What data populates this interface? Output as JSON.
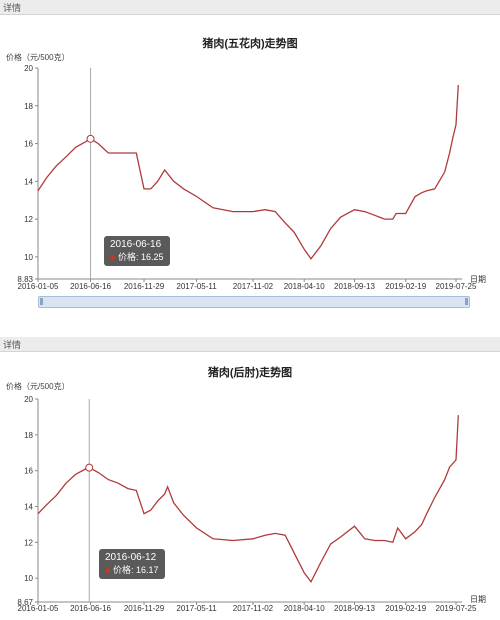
{
  "panels": [
    {
      "tab_label": "详情",
      "title": "猪肉(五花肉)走势图",
      "y_unit": "价格（元/500克）",
      "x_axis_name": "日期",
      "tooltip": {
        "date": "2016-06-16",
        "label": "价格: 16.25"
      }
    },
    {
      "tab_label": "详情",
      "title": "猪肉(后肘)走势图",
      "y_unit": "价格（元/500克）",
      "x_axis_name": "日期",
      "tooltip": {
        "date": "2016-06-12",
        "label": "价格: 16.17"
      }
    }
  ],
  "colors": {
    "line": "#b03a3a",
    "grid": "#e6e6e6",
    "axis": "#888888"
  },
  "chart_data": [
    {
      "type": "line",
      "title": "猪肉(五花肉)走势图",
      "ylabel": "价格（元/500克）",
      "xlabel": "日期",
      "ylim": [
        8.83,
        20
      ],
      "y_ticks": [
        "20",
        "18",
        "16",
        "14",
        "12",
        "10",
        "8.83"
      ],
      "x_ticks": [
        "2016-01-05",
        "2016-06-16",
        "2016-11-29",
        "2017-05-11",
        "2017-11-02",
        "2018-04-10",
        "2018-09-13",
        "2019-02-19",
        "2019-07-25"
      ],
      "grid": "none",
      "series": [
        {
          "x": [
            "2016-01-05",
            "2016-02-01",
            "2016-03-01",
            "2016-04-01",
            "2016-05-01",
            "2016-06-01",
            "2016-06-16",
            "2016-07-10",
            "2016-08-10",
            "2016-09-10",
            "2016-10-10",
            "2016-11-05",
            "2016-11-29",
            "2016-12-20",
            "2017-01-10",
            "2017-02-01",
            "2017-03-01",
            "2017-04-01",
            "2017-05-11",
            "2017-07-01",
            "2017-09-01",
            "2017-11-02",
            "2017-12-10",
            "2018-01-10",
            "2018-02-10",
            "2018-03-10",
            "2018-04-10",
            "2018-05-01",
            "2018-06-01",
            "2018-07-01",
            "2018-08-01",
            "2018-09-13",
            "2018-10-15",
            "2018-11-15",
            "2018-12-15",
            "2019-01-10",
            "2019-01-20",
            "2019-02-19",
            "2019-03-20",
            "2019-04-10",
            "2019-04-25",
            "2019-05-20",
            "2019-06-20",
            "2019-07-05",
            "2019-07-15",
            "2019-07-25",
            "2019-08-01"
          ],
          "y": [
            13.5,
            14.2,
            14.8,
            15.3,
            15.8,
            16.1,
            16.25,
            16.0,
            15.5,
            15.5,
            15.5,
            15.5,
            13.6,
            13.6,
            14.0,
            14.6,
            14.0,
            13.6,
            13.2,
            12.6,
            12.4,
            12.4,
            12.5,
            12.4,
            11.8,
            11.3,
            10.4,
            9.9,
            10.6,
            11.5,
            12.1,
            12.5,
            12.4,
            12.2,
            12.0,
            12.0,
            12.3,
            12.3,
            13.2,
            13.4,
            13.5,
            13.6,
            14.5,
            15.5,
            16.3,
            17.0,
            19.1
          ]
        }
      ]
    },
    {
      "type": "line",
      "title": "猪肉(后肘)走势图",
      "ylabel": "价格（元/500克）",
      "xlabel": "日期",
      "ylim": [
        8.67,
        20
      ],
      "y_ticks": [
        "20",
        "18",
        "16",
        "14",
        "12",
        "10",
        "8.67"
      ],
      "x_ticks": [
        "2016-01-05",
        "2016-06-16",
        "2016-11-29",
        "2017-05-11",
        "2017-11-02",
        "2018-04-10",
        "2018-09-13",
        "2019-02-19",
        "2019-07-25"
      ],
      "grid": "none",
      "series": [
        {
          "x": [
            "2016-01-05",
            "2016-02-01",
            "2016-03-01",
            "2016-04-01",
            "2016-05-01",
            "2016-06-01",
            "2016-06-12",
            "2016-07-10",
            "2016-08-10",
            "2016-09-10",
            "2016-10-10",
            "2016-11-05",
            "2016-11-29",
            "2016-12-20",
            "2017-01-10",
            "2017-02-01",
            "2017-02-10",
            "2017-03-01",
            "2017-04-01",
            "2017-05-11",
            "2017-07-01",
            "2017-09-01",
            "2017-11-02",
            "2017-12-10",
            "2018-01-10",
            "2018-02-10",
            "2018-03-10",
            "2018-04-10",
            "2018-05-01",
            "2018-06-01",
            "2018-07-01",
            "2018-08-01",
            "2018-09-13",
            "2018-10-15",
            "2018-11-15",
            "2018-12-15",
            "2019-01-10",
            "2019-01-25",
            "2019-02-19",
            "2019-03-20",
            "2019-04-10",
            "2019-04-25",
            "2019-05-20",
            "2019-06-20",
            "2019-07-05",
            "2019-07-15",
            "2019-07-25",
            "2019-08-01"
          ],
          "y": [
            13.6,
            14.1,
            14.6,
            15.3,
            15.8,
            16.1,
            16.17,
            15.9,
            15.5,
            15.3,
            15.0,
            14.9,
            13.6,
            13.8,
            14.3,
            14.7,
            15.1,
            14.2,
            13.5,
            12.8,
            12.2,
            12.1,
            12.2,
            12.4,
            12.5,
            12.4,
            11.4,
            10.3,
            9.8,
            10.9,
            11.9,
            12.3,
            12.9,
            12.2,
            12.1,
            12.1,
            12.0,
            12.8,
            12.2,
            12.6,
            13.0,
            13.6,
            14.5,
            15.5,
            16.2,
            16.4,
            16.6,
            19.1
          ]
        }
      ]
    }
  ]
}
